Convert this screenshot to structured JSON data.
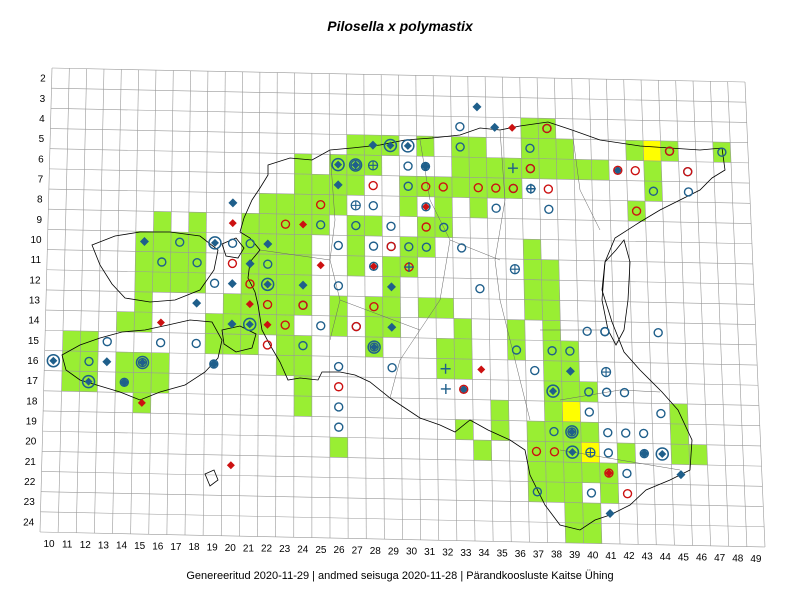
{
  "title": "Pilosella x polymastix",
  "footer": "Genereeritud 2020-11-29  |  andmed seisuga 2020-11-28  |  Pärandkoosluste Kaitse Ühing",
  "grid": {
    "rows": [
      "2",
      "3",
      "4",
      "5",
      "6",
      "7",
      "8",
      "9",
      "10",
      "11",
      "12",
      "13",
      "14",
      "15",
      "16",
      "17",
      "18",
      "19",
      "20",
      "21",
      "22",
      "23",
      "24"
    ],
    "cols": [
      "10",
      "11",
      "12",
      "13",
      "14",
      "15",
      "16",
      "17",
      "18",
      "19",
      "20",
      "21",
      "22",
      "23",
      "24",
      "25",
      "26",
      "27",
      "28",
      "29",
      "30",
      "31",
      "32",
      "33",
      "34",
      "35",
      "36",
      "37",
      "38",
      "39",
      "40",
      "41",
      "42",
      "43",
      "44",
      "45",
      "46",
      "47",
      "48",
      "49"
    ]
  },
  "colors": {
    "green": "#99ee33",
    "yellow": "#ffff00",
    "blue_marker": "#1f5f8b",
    "red_marker": "#cc1111",
    "grid_line": "#999999",
    "coast": "#000000"
  },
  "cells": {
    "green": [
      "11,15",
      "11,16",
      "11,17",
      "12,15",
      "12,16",
      "12,17",
      "14,14",
      "14,16",
      "14,17",
      "15,13",
      "15,14",
      "15,16",
      "15,17",
      "15,18",
      "16,16",
      "16,17",
      "15,10",
      "15,11",
      "15,12",
      "16,9",
      "16,10",
      "16,11",
      "16,12",
      "17,10",
      "17,11",
      "17,12",
      "18,9",
      "18,10",
      "18,11",
      "18,12",
      "19,14",
      "19,15",
      "20,13",
      "20,14",
      "20,15",
      "21,9",
      "21,10",
      "21,11",
      "21,12",
      "21,13",
      "21,14",
      "21,15",
      "22,8",
      "22,9",
      "22,10",
      "22,11",
      "22,12",
      "22,13",
      "22,14",
      "23,8",
      "23,9",
      "23,10",
      "23,11",
      "23,12",
      "23,13",
      "23,14",
      "23,15",
      "23,16",
      "24,6",
      "24,7",
      "24,8",
      "24,9",
      "24,10",
      "24,11",
      "24,12",
      "24,13",
      "24,15",
      "24,16",
      "24,17",
      "24,18",
      "25,7",
      "25,8",
      "25,9",
      "26,6",
      "26,7",
      "26,8",
      "26,13",
      "26,14",
      "26,20",
      "27,5",
      "27,6",
      "27,7",
      "27,9",
      "27,10",
      "27,11",
      "28,5",
      "28,6",
      "28,9",
      "28,13",
      "28,14",
      "28,15",
      "29,5",
      "29,11",
      "29,12",
      "29,13",
      "29,14",
      "30,7",
      "30,8",
      "30,10",
      "30,11",
      "31,5",
      "31,7",
      "31,9",
      "31,10",
      "31,13",
      "32,7",
      "32,8",
      "32,9",
      "32,13",
      "32,15",
      "32,16",
      "33,5",
      "33,6",
      "33,7",
      "33,14",
      "33,15",
      "33,16",
      "33,19",
      "34,5",
      "34,6",
      "34,7",
      "34,8",
      "34,20",
      "35,6",
      "35,7",
      "35,18",
      "35,19",
      "36,6",
      "36,7",
      "36,14",
      "36,15",
      "37,4",
      "37,5",
      "37,6",
      "37,10",
      "37,11",
      "37,12",
      "37,13",
      "37,19",
      "37,20",
      "37,21",
      "37,22",
      "38,4",
      "38,5",
      "38,6",
      "38,11",
      "38,12",
      "38,13",
      "38,14",
      "38,15",
      "38,16",
      "38,17",
      "38,18",
      "38,19",
      "38,20",
      "38,21",
      "38,22",
      "39,5",
      "39,6",
      "39,15",
      "39,16",
      "39,17",
      "39,18",
      "39,19",
      "39,20",
      "39,21",
      "39,22",
      "39,23",
      "39,24",
      "40,6",
      "40,17",
      "40,19",
      "40,21",
      "40,23",
      "40,24",
      "41,6",
      "41,21",
      "41,22",
      "42,20",
      "43,5",
      "43,8",
      "44,5",
      "44,6",
      "44,7",
      "45,5",
      "45,18",
      "45,19",
      "45,20",
      "46,20",
      "48,5"
    ],
    "yellow": [
      "39,18",
      "40,20",
      "44,5"
    ]
  },
  "markers": {
    "blue_diamond": [
      "28,5",
      "31,6",
      "34,3",
      "35,4",
      "13,16",
      "15,10",
      "14,17",
      "20,8",
      "21,11",
      "20,12",
      "24,12",
      "19,16",
      "20,14",
      "18,13",
      "22,10",
      "29,14",
      "29,12",
      "26,7",
      "41,23",
      "39,16",
      "33,17",
      "43,20",
      "45,21",
      "42,6"
    ],
    "blue_circle": [
      "17,10",
      "16,11",
      "18,11",
      "19,12",
      "18,15",
      "15,16",
      "19,16",
      "16,15",
      "22,11",
      "20,10",
      "21,10",
      "24,13",
      "25,9",
      "26,10",
      "27,9",
      "28,8",
      "28,10",
      "28,11",
      "29,9",
      "29,10",
      "30,6",
      "30,7",
      "31,6",
      "31,8",
      "32,9",
      "33,4",
      "33,5",
      "33,10",
      "34,12",
      "35,8",
      "36,7",
      "36,15",
      "37,5",
      "37,6",
      "37,7",
      "38,4",
      "38,8",
      "37,16",
      "38,15",
      "39,15",
      "40,14",
      "41,14",
      "40,17",
      "41,17",
      "42,17",
      "40,18",
      "41,19",
      "42,19",
      "43,19",
      "44,18",
      "43,20",
      "41,20",
      "42,21",
      "44,7",
      "45,5",
      "46,6",
      "46,7",
      "48,5",
      "37,22",
      "38,19",
      "39,19",
      "12,16",
      "13,15",
      "14,17",
      "26,12",
      "25,14",
      "24,15",
      "26,18",
      "27,14",
      "28,15",
      "29,16",
      "30,10",
      "31,10",
      "26,19",
      "40,22",
      "26,16",
      "44,14",
      "41,14"
    ],
    "red_circle": [
      "23,9",
      "21,12",
      "22,13",
      "22,15",
      "23,14",
      "24,13",
      "25,8",
      "27,14",
      "28,13",
      "29,10",
      "30,11",
      "31,7",
      "31,9",
      "32,7",
      "34,7",
      "35,7",
      "36,7",
      "37,6",
      "38,4",
      "38,7",
      "42,6",
      "43,8",
      "41,21",
      "42,22",
      "43,6",
      "45,5",
      "46,6",
      "37,20",
      "38,20",
      "20,11",
      "26,17",
      "33,17",
      "28,7"
    ],
    "blue_target": [
      "26,6",
      "29,5",
      "30,5",
      "27,6",
      "22,12",
      "21,14",
      "19,10",
      "10,16",
      "15,16",
      "12,17",
      "28,15",
      "38,17",
      "39,19",
      "39,20",
      "44,20"
    ],
    "red_diamond": [
      "20,9",
      "22,12",
      "21,13",
      "22,14",
      "24,9",
      "25,11",
      "28,11",
      "31,8",
      "36,4",
      "16,14",
      "15,18",
      "20,21",
      "34,16",
      "41,21"
    ],
    "plus": [
      "36,6",
      "30,11",
      "32,16",
      "32,17",
      "37,7"
    ],
    "circle_plus": [
      "27,6",
      "27,8",
      "28,6",
      "36,11",
      "40,20",
      "41,16"
    ]
  }
}
